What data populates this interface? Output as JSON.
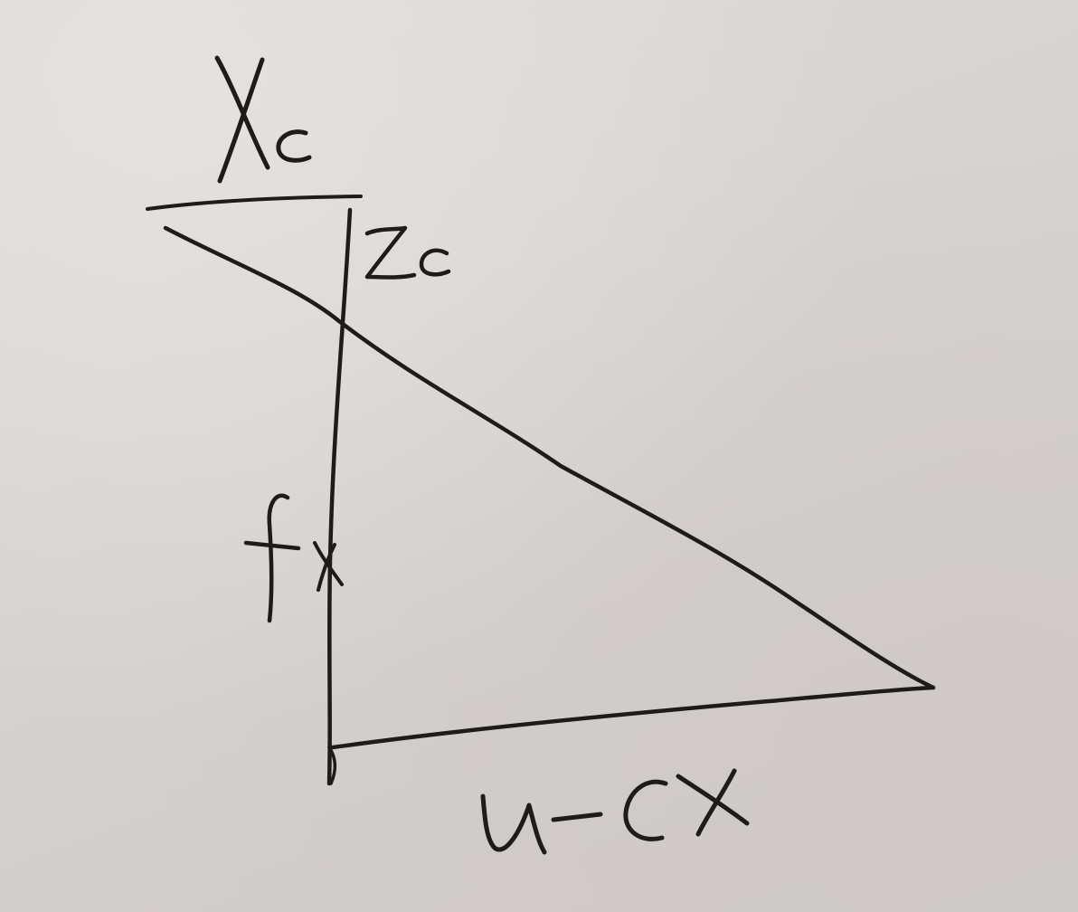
{
  "diagram": {
    "labels": {
      "top_axis": "Xc",
      "depth_axis": "Zc",
      "focal": "f",
      "bottom_side": "u-cx"
    },
    "ink_color": "#1e1c1b",
    "paper_color": "#d6d2cf"
  }
}
